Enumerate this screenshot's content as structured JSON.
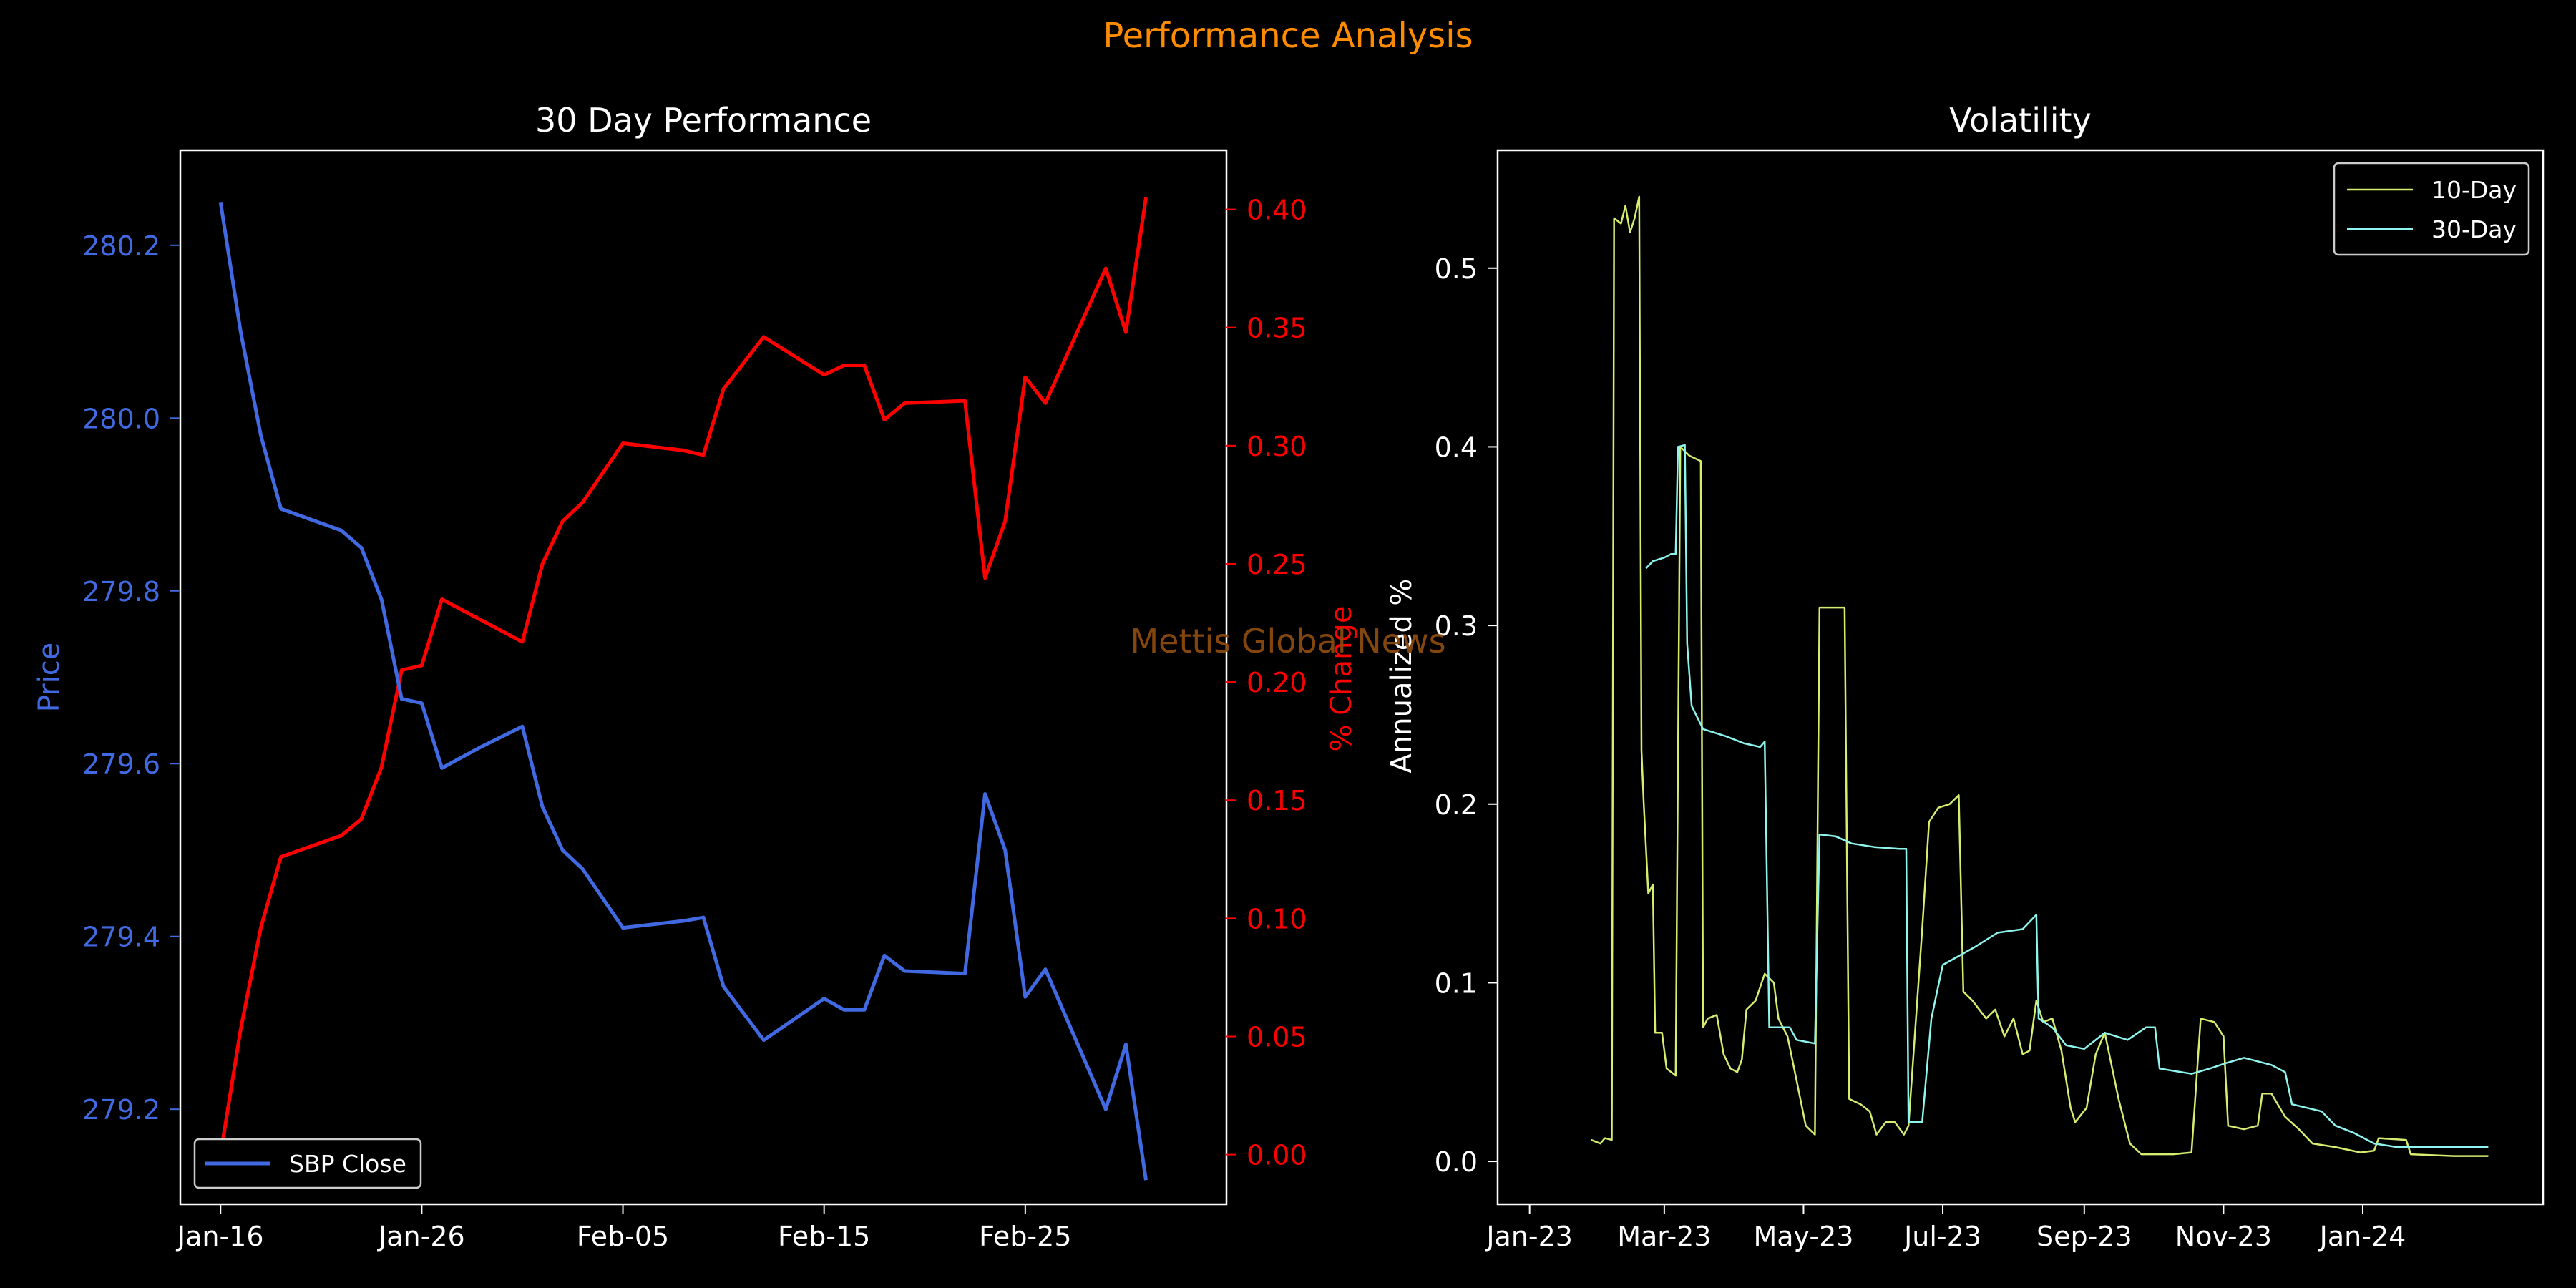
{
  "figure": {
    "suptitle": "Performance Analysis",
    "watermark": "Mettis Global News",
    "colors": {
      "background": "#000000",
      "suptitle": "#ff8c00",
      "watermark": "#8b4a0f",
      "price": "#4169e1",
      "pct_change": "#ff0000",
      "vol10": "#d4ed6e",
      "vol30": "#8ef5ee",
      "axes": "#ffffff"
    }
  },
  "chart_data": [
    {
      "type": "line",
      "title": "30 Day Performance",
      "xlabel": "",
      "ylabel": "Price",
      "y2label": "% Change",
      "x_ticks": [
        "Jan-16",
        "Jan-26",
        "Feb-05",
        "Feb-15",
        "Feb-25"
      ],
      "y_ticks": [
        "279.2",
        "279.4",
        "279.6",
        "279.8",
        "280.0",
        "280.2"
      ],
      "y2_ticks": [
        "0.00",
        "0.05",
        "0.10",
        "0.15",
        "0.20",
        "0.25",
        "0.30",
        "0.35",
        "0.40"
      ],
      "ylim": [
        279.09,
        280.31
      ],
      "y2lim": [
        -0.021,
        0.425
      ],
      "legend": {
        "placement": "lower-left",
        "entries": [
          "SBP Close"
        ]
      },
      "grid": false,
      "series": [
        {
          "name": "SBP Close",
          "axis": "left",
          "points": [
            [
              "2024-01-16",
              280.25
            ],
            [
              "2024-01-17",
              280.1
            ],
            [
              "2024-01-18",
              279.98
            ],
            [
              "2024-01-19",
              279.895
            ],
            [
              "2024-01-22",
              279.87
            ],
            [
              "2024-01-23",
              279.85
            ],
            [
              "2024-01-24",
              279.79
            ],
            [
              "2024-01-25",
              279.675
            ],
            [
              "2024-01-26",
              279.67
            ],
            [
              "2024-01-27",
              279.595
            ],
            [
              "2024-01-29",
              279.62
            ],
            [
              "2024-01-31",
              279.643
            ],
            [
              "2024-02-01",
              279.55
            ],
            [
              "2024-02-02",
              279.5
            ],
            [
              "2024-02-03",
              279.478
            ],
            [
              "2024-02-05",
              279.41
            ],
            [
              "2024-02-08",
              279.418
            ],
            [
              "2024-02-09",
              279.422
            ],
            [
              "2024-02-10",
              279.342
            ],
            [
              "2024-02-12",
              279.28
            ],
            [
              "2024-02-15",
              279.328
            ],
            [
              "2024-02-16",
              279.315
            ],
            [
              "2024-02-17",
              279.315
            ],
            [
              "2024-02-18",
              279.378
            ],
            [
              "2024-02-19",
              279.36
            ],
            [
              "2024-02-22",
              279.357
            ],
            [
              "2024-02-23",
              279.565
            ],
            [
              "2024-02-24",
              279.5
            ],
            [
              "2024-02-25",
              279.33
            ],
            [
              "2024-02-26",
              279.362
            ],
            [
              "2024-02-29",
              279.2
            ],
            [
              "2024-03-01",
              279.275
            ],
            [
              "2024-03-02",
              279.118
            ]
          ]
        },
        {
          "name": "% Change",
          "axis": "right",
          "points": [
            [
              "2024-01-16",
              0.0
            ],
            [
              "2024-01-17",
              0.053
            ],
            [
              "2024-01-18",
              0.096
            ],
            [
              "2024-01-19",
              0.126
            ],
            [
              "2024-01-22",
              0.135
            ],
            [
              "2024-01-23",
              0.142
            ],
            [
              "2024-01-24",
              0.164
            ],
            [
              "2024-01-25",
              0.205
            ],
            [
              "2024-01-26",
              0.207
            ],
            [
              "2024-01-27",
              0.235
            ],
            [
              "2024-01-29",
              0.226
            ],
            [
              "2024-01-31",
              0.217
            ],
            [
              "2024-02-01",
              0.25
            ],
            [
              "2024-02-02",
              0.268
            ],
            [
              "2024-02-03",
              0.276
            ],
            [
              "2024-02-05",
              0.301
            ],
            [
              "2024-02-08",
              0.298
            ],
            [
              "2024-02-09",
              0.296
            ],
            [
              "2024-02-10",
              0.324
            ],
            [
              "2024-02-12",
              0.346
            ],
            [
              "2024-02-15",
              0.33
            ],
            [
              "2024-02-16",
              0.334
            ],
            [
              "2024-02-17",
              0.334
            ],
            [
              "2024-02-18",
              0.311
            ],
            [
              "2024-02-19",
              0.318
            ],
            [
              "2024-02-22",
              0.319
            ],
            [
              "2024-02-23",
              0.244
            ],
            [
              "2024-02-24",
              0.268
            ],
            [
              "2024-02-25",
              0.329
            ],
            [
              "2024-02-26",
              0.318
            ],
            [
              "2024-02-29",
              0.375
            ],
            [
              "2024-03-01",
              0.348
            ],
            [
              "2024-03-02",
              0.405
            ]
          ]
        }
      ]
    },
    {
      "type": "line",
      "title": "Volatility",
      "xlabel": "",
      "ylabel": "Annualized %",
      "x_ticks": [
        "Jan-23",
        "Mar-23",
        "May-23",
        "Jul-23",
        "Sep-23",
        "Nov-23",
        "Jan-24"
      ],
      "y_ticks": [
        "0.0",
        "0.1",
        "0.2",
        "0.3",
        "0.4",
        "0.5"
      ],
      "ylim": [
        -0.024,
        0.566
      ],
      "legend": {
        "placement": "top-right",
        "entries": [
          "10-Day",
          "30-Day"
        ]
      },
      "grid": false,
      "series": [
        {
          "name": "10-Day",
          "points": [
            [
              "2023-01-28",
              0.012
            ],
            [
              "2023-02-01",
              0.01
            ],
            [
              "2023-02-03",
              0.013
            ],
            [
              "2023-02-06",
              0.012
            ],
            [
              "2023-02-07",
              0.528
            ],
            [
              "2023-02-10",
              0.525
            ],
            [
              "2023-02-12",
              0.535
            ],
            [
              "2023-02-14",
              0.52
            ],
            [
              "2023-02-16",
              0.528
            ],
            [
              "2023-02-18",
              0.54
            ],
            [
              "2023-02-19",
              0.23
            ],
            [
              "2023-02-20",
              0.2
            ],
            [
              "2023-02-22",
              0.15
            ],
            [
              "2023-02-24",
              0.155
            ],
            [
              "2023-02-25",
              0.072
            ],
            [
              "2023-02-28",
              0.072
            ],
            [
              "2023-03-02",
              0.052
            ],
            [
              "2023-03-06",
              0.048
            ],
            [
              "2023-03-08",
              0.4
            ],
            [
              "2023-03-12",
              0.395
            ],
            [
              "2023-03-17",
              0.392
            ],
            [
              "2023-03-18",
              0.075
            ],
            [
              "2023-03-20",
              0.08
            ],
            [
              "2023-03-24",
              0.082
            ],
            [
              "2023-03-27",
              0.06
            ],
            [
              "2023-03-30",
              0.052
            ],
            [
              "2023-04-02",
              0.05
            ],
            [
              "2023-04-04",
              0.057
            ],
            [
              "2023-04-06",
              0.085
            ],
            [
              "2023-04-10",
              0.09
            ],
            [
              "2023-04-14",
              0.105
            ],
            [
              "2023-04-18",
              0.1
            ],
            [
              "2023-04-20",
              0.08
            ],
            [
              "2023-04-24",
              0.07
            ],
            [
              "2023-04-28",
              0.045
            ],
            [
              "2023-05-02",
              0.02
            ],
            [
              "2023-05-06",
              0.015
            ],
            [
              "2023-05-08",
              0.31
            ],
            [
              "2023-05-14",
              0.31
            ],
            [
              "2023-05-19",
              0.31
            ],
            [
              "2023-05-21",
              0.035
            ],
            [
              "2023-05-26",
              0.032
            ],
            [
              "2023-05-30",
              0.028
            ],
            [
              "2023-06-02",
              0.015
            ],
            [
              "2023-06-06",
              0.022
            ],
            [
              "2023-06-10",
              0.022
            ],
            [
              "2023-06-14",
              0.015
            ],
            [
              "2023-06-16",
              0.02
            ],
            [
              "2023-06-22",
              0.13
            ],
            [
              "2023-06-25",
              0.19
            ],
            [
              "2023-06-29",
              0.198
            ],
            [
              "2023-07-04",
              0.2
            ],
            [
              "2023-07-08",
              0.205
            ],
            [
              "2023-07-10",
              0.095
            ],
            [
              "2023-07-14",
              0.09
            ],
            [
              "2023-07-20",
              0.08
            ],
            [
              "2023-07-24",
              0.085
            ],
            [
              "2023-07-28",
              0.07
            ],
            [
              "2023-08-01",
              0.08
            ],
            [
              "2023-08-05",
              0.06
            ],
            [
              "2023-08-08",
              0.062
            ],
            [
              "2023-08-11",
              0.09
            ],
            [
              "2023-08-14",
              0.078
            ],
            [
              "2023-08-18",
              0.08
            ],
            [
              "2023-08-22",
              0.062
            ],
            [
              "2023-08-26",
              0.03
            ],
            [
              "2023-08-28",
              0.022
            ],
            [
              "2023-09-02",
              0.03
            ],
            [
              "2023-09-06",
              0.06
            ],
            [
              "2023-09-10",
              0.072
            ],
            [
              "2023-09-16",
              0.035
            ],
            [
              "2023-09-21",
              0.01
            ],
            [
              "2023-09-26",
              0.004
            ],
            [
              "2023-10-10",
              0.004
            ],
            [
              "2023-10-18",
              0.005
            ],
            [
              "2023-10-22",
              0.08
            ],
            [
              "2023-10-28",
              0.078
            ],
            [
              "2023-11-01",
              0.07
            ],
            [
              "2023-11-03",
              0.02
            ],
            [
              "2023-11-10",
              0.018
            ],
            [
              "2023-11-16",
              0.02
            ],
            [
              "2023-11-18",
              0.038
            ],
            [
              "2023-11-22",
              0.038
            ],
            [
              "2023-11-28",
              0.025
            ],
            [
              "2023-12-04",
              0.018
            ],
            [
              "2023-12-10",
              0.01
            ],
            [
              "2023-12-20",
              0.008
            ],
            [
              "2023-12-31",
              0.005
            ],
            [
              "2024-01-06",
              0.006
            ],
            [
              "2024-01-08",
              0.013
            ],
            [
              "2024-01-20",
              0.012
            ],
            [
              "2024-01-22",
              0.004
            ],
            [
              "2024-02-10",
              0.003
            ],
            [
              "2024-02-25",
              0.003
            ]
          ]
        },
        {
          "name": "30-Day",
          "points": [
            [
              "2023-02-21",
              0.332
            ],
            [
              "2023-02-24",
              0.336
            ],
            [
              "2023-03-01",
              0.338
            ],
            [
              "2023-03-04",
              0.34
            ],
            [
              "2023-03-06",
              0.34
            ],
            [
              "2023-03-07",
              0.4
            ],
            [
              "2023-03-10",
              0.401
            ],
            [
              "2023-03-11",
              0.29
            ],
            [
              "2023-03-13",
              0.255
            ],
            [
              "2023-03-18",
              0.242
            ],
            [
              "2023-03-28",
              0.238
            ],
            [
              "2023-04-05",
              0.234
            ],
            [
              "2023-04-12",
              0.232
            ],
            [
              "2023-04-14",
              0.235
            ],
            [
              "2023-04-16",
              0.075
            ],
            [
              "2023-04-25",
              0.075
            ],
            [
              "2023-04-28",
              0.068
            ],
            [
              "2023-05-06",
              0.066
            ],
            [
              "2023-05-08",
              0.183
            ],
            [
              "2023-05-15",
              0.182
            ],
            [
              "2023-05-22",
              0.178
            ],
            [
              "2023-06-01",
              0.176
            ],
            [
              "2023-06-12",
              0.175
            ],
            [
              "2023-06-15",
              0.175
            ],
            [
              "2023-06-16",
              0.022
            ],
            [
              "2023-06-22",
              0.022
            ],
            [
              "2023-06-26",
              0.08
            ],
            [
              "2023-07-01",
              0.11
            ],
            [
              "2023-07-08",
              0.115
            ],
            [
              "2023-07-15",
              0.12
            ],
            [
              "2023-07-25",
              0.128
            ],
            [
              "2023-08-05",
              0.13
            ],
            [
              "2023-08-11",
              0.138
            ],
            [
              "2023-08-12",
              0.08
            ],
            [
              "2023-08-18",
              0.075
            ],
            [
              "2023-08-24",
              0.065
            ],
            [
              "2023-09-01",
              0.063
            ],
            [
              "2023-09-10",
              0.072
            ],
            [
              "2023-09-20",
              0.068
            ],
            [
              "2023-09-28",
              0.075
            ],
            [
              "2023-10-02",
              0.075
            ],
            [
              "2023-10-04",
              0.052
            ],
            [
              "2023-10-18",
              0.049
            ],
            [
              "2023-10-26",
              0.052
            ],
            [
              "2023-11-02",
              0.055
            ],
            [
              "2023-11-10",
              0.058
            ],
            [
              "2023-11-22",
              0.054
            ],
            [
              "2023-11-28",
              0.05
            ],
            [
              "2023-12-01",
              0.032
            ],
            [
              "2023-12-14",
              0.028
            ],
            [
              "2023-12-20",
              0.02
            ],
            [
              "2023-12-28",
              0.016
            ],
            [
              "2024-01-06",
              0.01
            ],
            [
              "2024-01-16",
              0.008
            ],
            [
              "2024-01-24",
              0.008
            ],
            [
              "2024-02-10",
              0.008
            ],
            [
              "2024-02-25",
              0.008
            ]
          ]
        }
      ]
    }
  ]
}
